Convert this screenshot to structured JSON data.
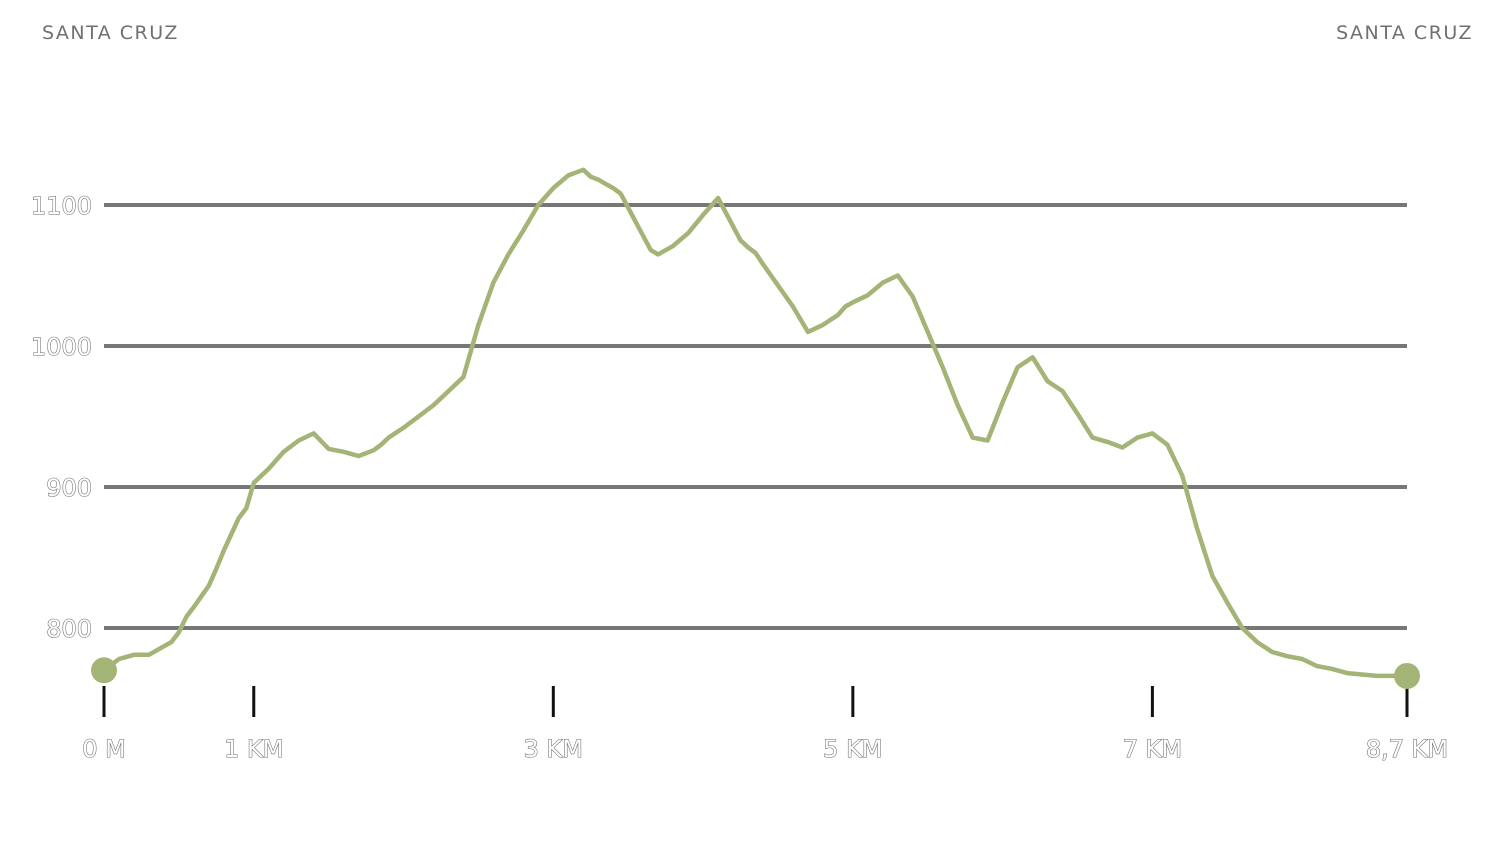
{
  "start_location": "SANTA CRUZ",
  "end_location": "SANTA CRUZ",
  "colors": {
    "profile": "#a4b477",
    "gridline": "#777777",
    "text": "#707070",
    "tick": "#111111"
  },
  "chart_data": {
    "type": "line",
    "title": "",
    "xlabel": "",
    "ylabel": "",
    "xlim": [
      0,
      8.7
    ],
    "ylim": [
      720,
      1160
    ],
    "grid": true,
    "y_ticks": [
      {
        "value": 800,
        "label": "800"
      },
      {
        "value": 900,
        "label": "900"
      },
      {
        "value": 1000,
        "label": "1000"
      },
      {
        "value": 1100,
        "label": "1100"
      }
    ],
    "x_ticks": [
      {
        "value": 0,
        "label": "0 M"
      },
      {
        "value": 1,
        "label": "1 KM"
      },
      {
        "value": 3,
        "label": "3 KM"
      },
      {
        "value": 5,
        "label": "5 KM"
      },
      {
        "value": 7,
        "label": "7 KM"
      },
      {
        "value": 8.7,
        "label": "8,7 KM"
      }
    ],
    "series": [
      {
        "values_x": [
          0,
          0.1,
          0.2,
          0.3,
          0.45,
          0.5,
          0.55,
          0.6,
          0.7,
          0.75,
          0.8,
          0.9,
          0.95,
          1.0,
          1.1,
          1.2,
          1.3,
          1.4,
          1.5,
          1.6,
          1.7,
          1.8,
          1.85,
          1.9,
          2.0,
          2.1,
          2.2,
          2.3,
          2.4,
          2.5,
          2.55,
          2.6,
          2.7,
          2.8,
          2.9,
          3.0,
          3.1,
          3.2,
          3.25,
          3.3,
          3.35,
          3.4,
          3.45,
          3.5,
          3.55,
          3.6,
          3.65,
          3.7,
          3.8,
          3.9,
          4.0,
          4.1,
          4.15,
          4.2,
          4.25,
          4.3,
          4.35,
          4.4,
          4.5,
          4.6,
          4.7,
          4.8,
          4.9,
          4.95,
          5.0,
          5.1,
          5.2,
          5.3,
          5.4,
          5.5,
          5.6,
          5.7,
          5.8,
          5.9,
          6.0,
          6.1,
          6.2,
          6.3,
          6.4,
          6.5,
          6.6,
          6.7,
          6.8,
          6.9,
          7.0,
          7.1,
          7.2,
          7.3,
          7.4,
          7.5,
          7.6,
          7.7,
          7.8,
          7.9,
          8.0,
          8.1,
          8.2,
          8.3,
          8.4,
          8.5,
          8.6,
          8.7
        ],
        "values_y": [
          770,
          778,
          781,
          781,
          790,
          797,
          808,
          815,
          830,
          842,
          855,
          878,
          885,
          903,
          913,
          925,
          933,
          938,
          927,
          925,
          922,
          926,
          930,
          935,
          942,
          950,
          958,
          968,
          978,
          1015,
          1030,
          1045,
          1065,
          1082,
          1100,
          1112,
          1121,
          1125,
          1120,
          1118,
          1115,
          1112,
          1108,
          1098,
          1088,
          1078,
          1068,
          1065,
          1071,
          1080,
          1093,
          1105,
          1095,
          1085,
          1075,
          1070,
          1066,
          1058,
          1043,
          1028,
          1010,
          1015,
          1022,
          1028,
          1031,
          1036,
          1045,
          1050,
          1035,
          1010,
          985,
          958,
          935,
          933,
          960,
          985,
          992,
          975,
          968,
          952,
          935,
          932,
          928,
          935,
          938,
          930,
          908,
          870,
          837,
          818,
          800,
          790,
          783,
          780,
          778,
          773,
          771,
          768,
          767,
          766,
          766,
          766
        ]
      }
    ]
  }
}
